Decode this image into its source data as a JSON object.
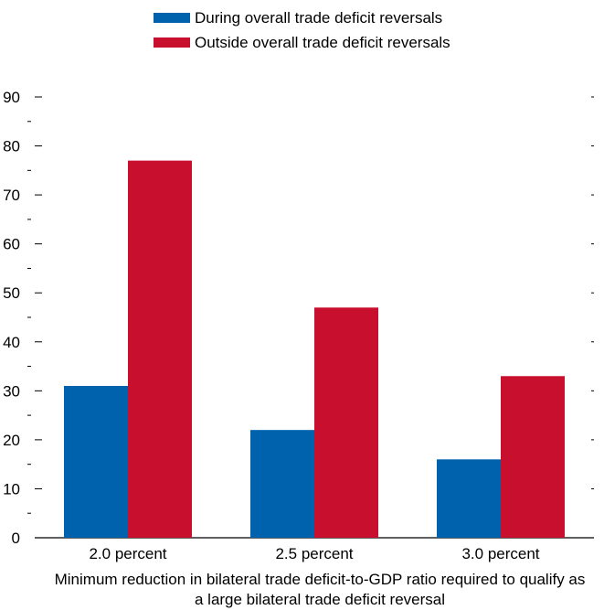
{
  "chart_data": {
    "type": "bar",
    "categories": [
      "2.0 percent",
      "2.5 percent",
      "3.0 percent"
    ],
    "series": [
      {
        "name": "During overall trade deficit reversals",
        "values": [
          31,
          22,
          16
        ],
        "color": "#0061ad"
      },
      {
        "name": "Outside overall trade deficit reversals",
        "values": [
          77,
          47,
          33
        ],
        "color": "#c8102e"
      }
    ],
    "xlabel_lines": [
      "Minimum reduction in bilateral trade deficit-to-GDP ratio required to qualify as",
      "a large bilateral trade deficit reversal"
    ],
    "ylim": [
      0,
      90
    ],
    "yticks": [
      0,
      10,
      20,
      30,
      40,
      50,
      60,
      70,
      80,
      90
    ],
    "grid": false,
    "legend_position": "top-center"
  }
}
